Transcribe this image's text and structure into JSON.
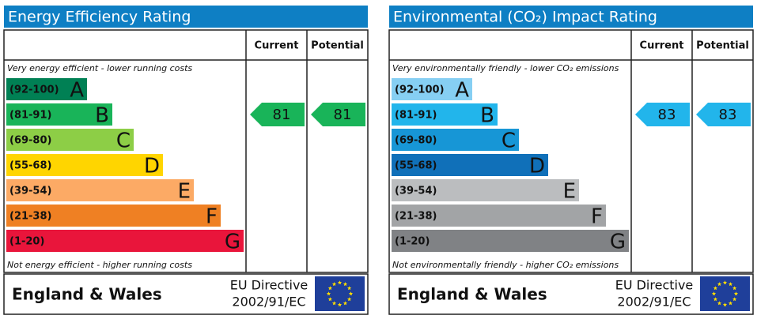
{
  "panels": [
    {
      "title": "Energy Efficiency Rating",
      "headers": [
        "Current",
        "Potential"
      ],
      "top_note": "Very energy efficient - lower running costs",
      "bottom_note": "Not energy efficient - higher running costs",
      "bands": [
        {
          "range": "(92-100)",
          "letter": "A",
          "color": "#008054"
        },
        {
          "range": "(81-91)",
          "letter": "B",
          "color": "#19b459"
        },
        {
          "range": "(69-80)",
          "letter": "C",
          "color": "#8dce46"
        },
        {
          "range": "(55-68)",
          "letter": "D",
          "color": "#ffd500"
        },
        {
          "range": "(39-54)",
          "letter": "E",
          "color": "#fcaa65"
        },
        {
          "range": "(21-38)",
          "letter": "F",
          "color": "#ef8023"
        },
        {
          "range": "(1-20)",
          "letter": "G",
          "color": "#e9153b"
        }
      ],
      "current": 81,
      "potential": 81,
      "footer": {
        "region": "England & Wales",
        "directive": [
          "EU Directive",
          "2002/91/EC"
        ]
      }
    },
    {
      "title": "Environmental (CO₂) Impact Rating",
      "headers": [
        "Current",
        "Potential"
      ],
      "top_note": "Very environmentally friendly - lower CO₂ emissions",
      "bottom_note": "Not environmentally friendly - higher CO₂ emissions",
      "bands": [
        {
          "range": "(92-100)",
          "letter": "A",
          "color": "#86cff3"
        },
        {
          "range": "(81-91)",
          "letter": "B",
          "color": "#22b5eb"
        },
        {
          "range": "(69-80)",
          "letter": "C",
          "color": "#1796d6"
        },
        {
          "range": "(55-68)",
          "letter": "D",
          "color": "#1070b9"
        },
        {
          "range": "(39-54)",
          "letter": "E",
          "color": "#bbbdbf"
        },
        {
          "range": "(21-38)",
          "letter": "F",
          "color": "#a2a4a6"
        },
        {
          "range": "(1-20)",
          "letter": "G",
          "color": "#808285"
        }
      ],
      "current": 83,
      "potential": 83,
      "footer": {
        "region": "England & Wales",
        "directive": [
          "EU Directive",
          "2002/91/EC"
        ]
      }
    }
  ]
}
